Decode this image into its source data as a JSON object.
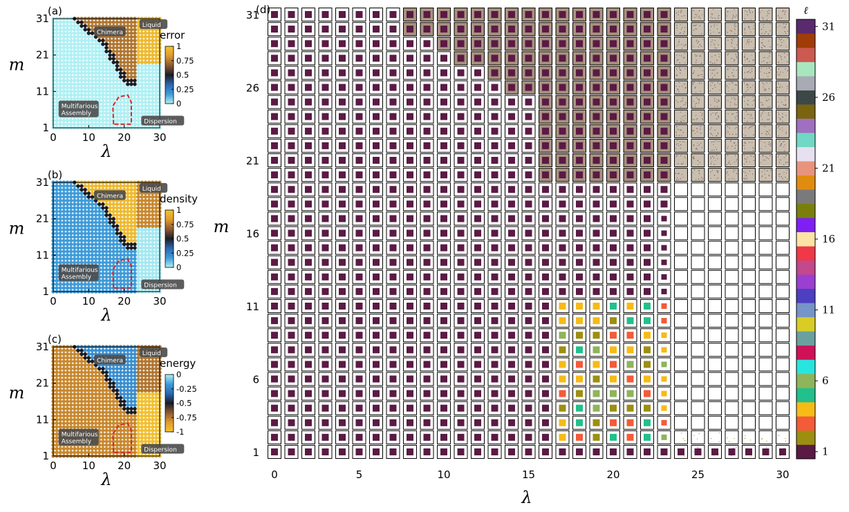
{
  "chart_data": [
    {
      "panel": "(a)",
      "type": "heatmap",
      "xlabel": "λ",
      "ylabel": "m",
      "xticks": [
        "0",
        "10",
        "20",
        "30"
      ],
      "yticks": [
        "1",
        "11",
        "21",
        "31"
      ],
      "xlim": [
        0,
        30
      ],
      "ylim": [
        1,
        31
      ],
      "colorbar": {
        "title": "error",
        "ticks": [
          "1",
          "0.75",
          "0.5",
          "0.25",
          "0"
        ],
        "colors_top_to_bottom": [
          "#f3c431",
          "#e09a2c",
          "#8a5a35",
          "#1c1c24",
          "#2b67b0",
          "#3f9bd8",
          "#b0f0f4"
        ]
      },
      "regions": [
        "Chimera",
        "Liquid",
        "Multifarious Assembly",
        "Dispersion"
      ],
      "values_by_region": {
        "Multifarious Assembly": 0.0,
        "Chimera": 0.7,
        "Liquid": 0.95,
        "Dispersion": 0.0,
        "boundary": 0.5
      }
    },
    {
      "panel": "(b)",
      "type": "heatmap",
      "xlabel": "λ",
      "ylabel": "m",
      "xticks": [
        "0",
        "10",
        "20",
        "30"
      ],
      "yticks": [
        "1",
        "11",
        "21",
        "31"
      ],
      "xlim": [
        0,
        30
      ],
      "ylim": [
        1,
        31
      ],
      "colorbar": {
        "title": "density",
        "ticks": [
          "1",
          "0.75",
          "0.5",
          "0.25",
          "0"
        ],
        "colors_top_to_bottom": [
          "#f3c431",
          "#e09a2c",
          "#8a5a35",
          "#1c1c24",
          "#2b67b0",
          "#3f9bd8",
          "#b0f0f4"
        ]
      },
      "regions": [
        "Chimera",
        "Liquid",
        "Multifarious Assembly",
        "Dispersion"
      ],
      "values_by_region": {
        "Multifarious Assembly": 0.2,
        "Chimera": 0.95,
        "Liquid": 0.75,
        "Dispersion": 0.02,
        "boundary": 0.5
      }
    },
    {
      "panel": "(c)",
      "type": "heatmap",
      "xlabel": "λ",
      "ylabel": "m",
      "xticks": [
        "0",
        "10",
        "20",
        "30"
      ],
      "yticks": [
        "1",
        "11",
        "21",
        "31"
      ],
      "xlim": [
        0,
        30
      ],
      "ylim": [
        1,
        31
      ],
      "colorbar": {
        "title": "energy",
        "ticks": [
          "0",
          "-0.25",
          "-0.5",
          "-0.75",
          "-1"
        ],
        "colors_top_to_bottom": [
          "#b0f0f4",
          "#3f9bd8",
          "#2b67b0",
          "#1c1c24",
          "#8a5a35",
          "#e09a2c",
          "#f3c431"
        ]
      },
      "regions": [
        "Chimera",
        "Liquid",
        "Multifarious Assembly",
        "Dispersion"
      ],
      "values_by_region": {
        "Multifarious Assembly": -0.25,
        "Chimera": -0.75,
        "Liquid": -0.3,
        "Dispersion": -0.02,
        "boundary": -0.5
      }
    },
    {
      "panel": "(d)",
      "type": "heatmap",
      "description": "grid of assembled-state snapshots",
      "xlabel": "λ",
      "ylabel": "m",
      "xticks": [
        "0",
        "5",
        "10",
        "15",
        "20",
        "25",
        "30"
      ],
      "yticks": [
        "1",
        "6",
        "11",
        "16",
        "21",
        "26",
        "31"
      ],
      "xlim": [
        0,
        30
      ],
      "ylim": [
        1,
        31
      ],
      "colorbar": {
        "title": "ℓ",
        "ticks": [
          "1",
          "6",
          "11",
          "16",
          "21",
          "26",
          "31"
        ],
        "colors_bottom_to_top": [
          "#5a1a44",
          "#9c8f10",
          "#f45b38",
          "#f7bb16",
          "#21c08c",
          "#8fb45a",
          "#27e5de",
          "#cf1158",
          "#6aa0a0",
          "#d8cc25",
          "#7594c8",
          "#4c3fc0",
          "#9b3fd0",
          "#c3488c",
          "#f03848",
          "#fbe3a4",
          "#7f1ff5",
          "#7a7f0c",
          "#7a7a7a",
          "#e08c10",
          "#e8947c",
          "#e6e0f0",
          "#70d8c4",
          "#a070c0",
          "#7a6410",
          "#3c4848",
          "#a8aab4",
          "#a8e6c0",
          "#cc5a50",
          "#a03c08",
          "#5a2a6e"
        ]
      },
      "phase_regions": {
        "assembly_crystal_color_index": 1,
        "liquid_rows_from_m": 20,
        "liquid_until_lambda": 30,
        "dispersion_from_lambda": 24
      }
    }
  ]
}
